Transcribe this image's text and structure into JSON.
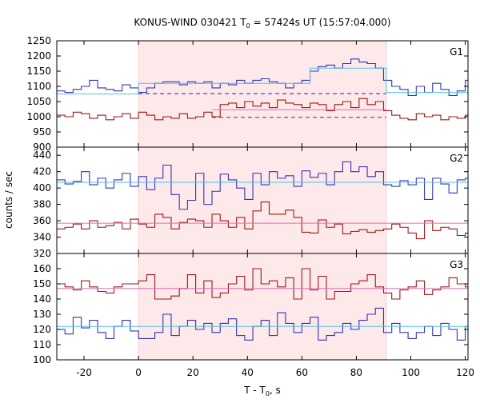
{
  "title": {
    "prefix": "KONUS-WIND 030421 T",
    "sub": "0",
    "suffix": " = 57424s UT (15:57:04.000)"
  },
  "xlabel": {
    "prefix": "T - T",
    "sub": "0",
    "suffix": ", s"
  },
  "ylabel": "counts / sec",
  "colors": {
    "blue": "#3535b5",
    "red": "#a01818",
    "cyan": "#54c0e8",
    "pink": "#e070b0",
    "shade": "#fde8ea",
    "dashed_blue": "#2020a0",
    "dashed_red": "#a01818"
  },
  "chart_data": {
    "type": "line",
    "step": true,
    "xlim": [
      -30,
      121
    ],
    "xticks": [
      -20,
      0,
      20,
      40,
      60,
      80,
      100,
      120
    ],
    "shaded_interval": [
      0,
      91
    ],
    "panels": [
      {
        "label": "G1",
        "ylim": [
          900,
          1250
        ],
        "yticks": [
          900,
          950,
          1000,
          1050,
          1100,
          1150,
          1200,
          1250
        ],
        "series": [
          {
            "color": "blue",
            "x": [
              -30,
              -27,
              -24,
              -21,
              -18,
              -15,
              -12,
              -9,
              -6,
              -3,
              0,
              3,
              6,
              9,
              12,
              15,
              18,
              21,
              24,
              27,
              30,
              33,
              36,
              39,
              42,
              45,
              48,
              51,
              54,
              57,
              60,
              63,
              66,
              69,
              72,
              75,
              78,
              81,
              84,
              87,
              90,
              93,
              96,
              99,
              102,
              105,
              108,
              111,
              114,
              117,
              120
            ],
            "y": [
              1085,
              1080,
              1090,
              1100,
              1120,
              1095,
              1090,
              1085,
              1105,
              1095,
              1080,
              1095,
              1110,
              1115,
              1115,
              1105,
              1115,
              1110,
              1115,
              1095,
              1110,
              1105,
              1120,
              1110,
              1120,
              1125,
              1115,
              1110,
              1095,
              1110,
              1120,
              1150,
              1165,
              1170,
              1160,
              1175,
              1190,
              1180,
              1175,
              1160,
              1120,
              1100,
              1090,
              1070,
              1100,
              1080,
              1110,
              1090,
              1070,
              1085,
              1120
            ]
          },
          {
            "color": "red",
            "x": [
              -30,
              -27,
              -24,
              -21,
              -18,
              -15,
              -12,
              -9,
              -6,
              -3,
              0,
              3,
              6,
              9,
              12,
              15,
              18,
              21,
              24,
              27,
              30,
              33,
              36,
              39,
              42,
              45,
              48,
              51,
              54,
              57,
              60,
              63,
              66,
              69,
              72,
              75,
              78,
              81,
              84,
              87,
              90,
              93,
              96,
              99,
              102,
              105,
              108,
              111,
              114,
              117,
              120
            ],
            "y": [
              1005,
              1000,
              1015,
              1010,
              995,
              1005,
              990,
              1000,
              1010,
              995,
              1015,
              1005,
              990,
              1000,
              995,
              1010,
              995,
              1000,
              1015,
              1000,
              1040,
              1045,
              1030,
              1050,
              1035,
              1045,
              1030,
              1055,
              1045,
              1040,
              1030,
              1045,
              1040,
              1020,
              1040,
              1050,
              1030,
              1060,
              1040,
              1050,
              1020,
              1005,
              995,
              990,
              1010,
              1000,
              1005,
              990,
              1000,
              995,
              1005
            ]
          },
          {
            "color": "cyan",
            "x": [
              -30,
              0,
              63,
              91,
              121
            ],
            "y": [
              1075,
              1110,
              1160,
              1080,
              1080
            ]
          },
          {
            "color": "pink",
            "x": [
              27,
              91
            ],
            "y": [
              1023,
              1023
            ]
          },
          {
            "color": "dashed_blue",
            "dashed": true,
            "x": [
              0,
              91
            ],
            "y": [
              1076,
              1076
            ]
          },
          {
            "color": "dashed_red",
            "dashed": true,
            "x": [
              27,
              91
            ],
            "y": [
              998,
              998
            ]
          }
        ]
      },
      {
        "label": "G2",
        "ylim": [
          320,
          450
        ],
        "yticks": [
          320,
          340,
          360,
          380,
          400,
          420,
          440
        ],
        "series": [
          {
            "color": "blue",
            "x": [
              -30,
              -27,
              -24,
              -21,
              -18,
              -15,
              -12,
              -9,
              -6,
              -3,
              0,
              3,
              6,
              9,
              12,
              15,
              18,
              21,
              24,
              27,
              30,
              33,
              36,
              39,
              42,
              45,
              48,
              51,
              54,
              57,
              60,
              63,
              66,
              69,
              72,
              75,
              78,
              81,
              84,
              87,
              90,
              93,
              96,
              99,
              102,
              105,
              108,
              111,
              114,
              117,
              120
            ],
            "y": [
              410,
              405,
              408,
              420,
              404,
              412,
              400,
              410,
              418,
              402,
              414,
              398,
              412,
              428,
              392,
              374,
              385,
              418,
              380,
              396,
              417,
              410,
              400,
              386,
              418,
              404,
              420,
              412,
              415,
              402,
              421,
              413,
              418,
              404,
              420,
              432,
              420,
              426,
              414,
              420,
              404,
              402,
              409,
              404,
              412,
              386,
              412,
              405,
              394,
              410,
              412
            ]
          },
          {
            "color": "red",
            "x": [
              -30,
              -27,
              -24,
              -21,
              -18,
              -15,
              -12,
              -9,
              -6,
              -3,
              0,
              3,
              6,
              9,
              12,
              15,
              18,
              21,
              24,
              27,
              30,
              33,
              36,
              39,
              42,
              45,
              48,
              51,
              54,
              57,
              60,
              63,
              66,
              69,
              72,
              75,
              78,
              81,
              84,
              87,
              90,
              93,
              96,
              99,
              102,
              105,
              108,
              111,
              114,
              117,
              120
            ],
            "y": [
              350,
              352,
              356,
              350,
              360,
              352,
              354,
              358,
              350,
              362,
              356,
              352,
              368,
              364,
              350,
              358,
              362,
              360,
              352,
              368,
              360,
              352,
              364,
              350,
              372,
              383,
              368,
              368,
              373,
              364,
              346,
              345,
              361,
              352,
              356,
              344,
              347,
              349,
              346,
              348,
              350,
              356,
              352,
              345,
              338,
              360,
              348,
              352,
              350,
              342,
              345
            ]
          },
          {
            "color": "cyan",
            "x": [
              -30,
              121
            ],
            "y": [
              407,
              407
            ]
          },
          {
            "color": "pink",
            "x": [
              -30,
              121
            ],
            "y": [
              357,
              357
            ]
          }
        ]
      },
      {
        "label": "G3",
        "ylim": [
          100,
          170
        ],
        "yticks": [
          100,
          110,
          120,
          130,
          140,
          150,
          160
        ],
        "series": [
          {
            "color": "blue",
            "x": [
              -30,
              -27,
              -24,
              -21,
              -18,
              -15,
              -12,
              -9,
              -6,
              -3,
              0,
              3,
              6,
              9,
              12,
              15,
              18,
              21,
              24,
              27,
              30,
              33,
              36,
              39,
              42,
              45,
              48,
              51,
              54,
              57,
              60,
              63,
              66,
              69,
              72,
              75,
              78,
              81,
              84,
              87,
              90,
              93,
              96,
              99,
              102,
              105,
              108,
              111,
              114,
              117,
              120
            ],
            "y": [
              120,
              117,
              128,
              121,
              126,
              118,
              114,
              122,
              126,
              119,
              114,
              114,
              118,
              130,
              116,
              122,
              126,
              120,
              124,
              118,
              124,
              127,
              116,
              113,
              122,
              126,
              116,
              131,
              124,
              118,
              124,
              128,
              113,
              116,
              118,
              124,
              120,
              126,
              130,
              134,
              118,
              124,
              118,
              114,
              118,
              122,
              116,
              124,
              120,
              113,
              122
            ]
          },
          {
            "color": "red",
            "x": [
              -30,
              -27,
              -24,
              -21,
              -18,
              -15,
              -12,
              -9,
              -6,
              -3,
              0,
              3,
              6,
              9,
              12,
              15,
              18,
              21,
              24,
              27,
              30,
              33,
              36,
              39,
              42,
              45,
              48,
              51,
              54,
              57,
              60,
              63,
              66,
              69,
              72,
              75,
              78,
              81,
              84,
              87,
              90,
              93,
              96,
              99,
              102,
              105,
              108,
              111,
              114,
              117,
              120
            ],
            "y": [
              150,
              148,
              146,
              152,
              148,
              145,
              144,
              148,
              150,
              150,
              152,
              156,
              140,
              140,
              142,
              147,
              156,
              144,
              152,
              141,
              144,
              150,
              155,
              146,
              160,
              150,
              152,
              148,
              154,
              140,
              160,
              146,
              155,
              140,
              145,
              145,
              150,
              152,
              156,
              148,
              144,
              140,
              146,
              148,
              152,
              143,
              146,
              148,
              154,
              150,
              148
            ]
          },
          {
            "color": "cyan",
            "x": [
              -30,
              121
            ],
            "y": [
              122,
              122
            ]
          },
          {
            "color": "pink",
            "x": [
              -30,
              121
            ],
            "y": [
              147,
              147
            ]
          }
        ]
      }
    ]
  }
}
